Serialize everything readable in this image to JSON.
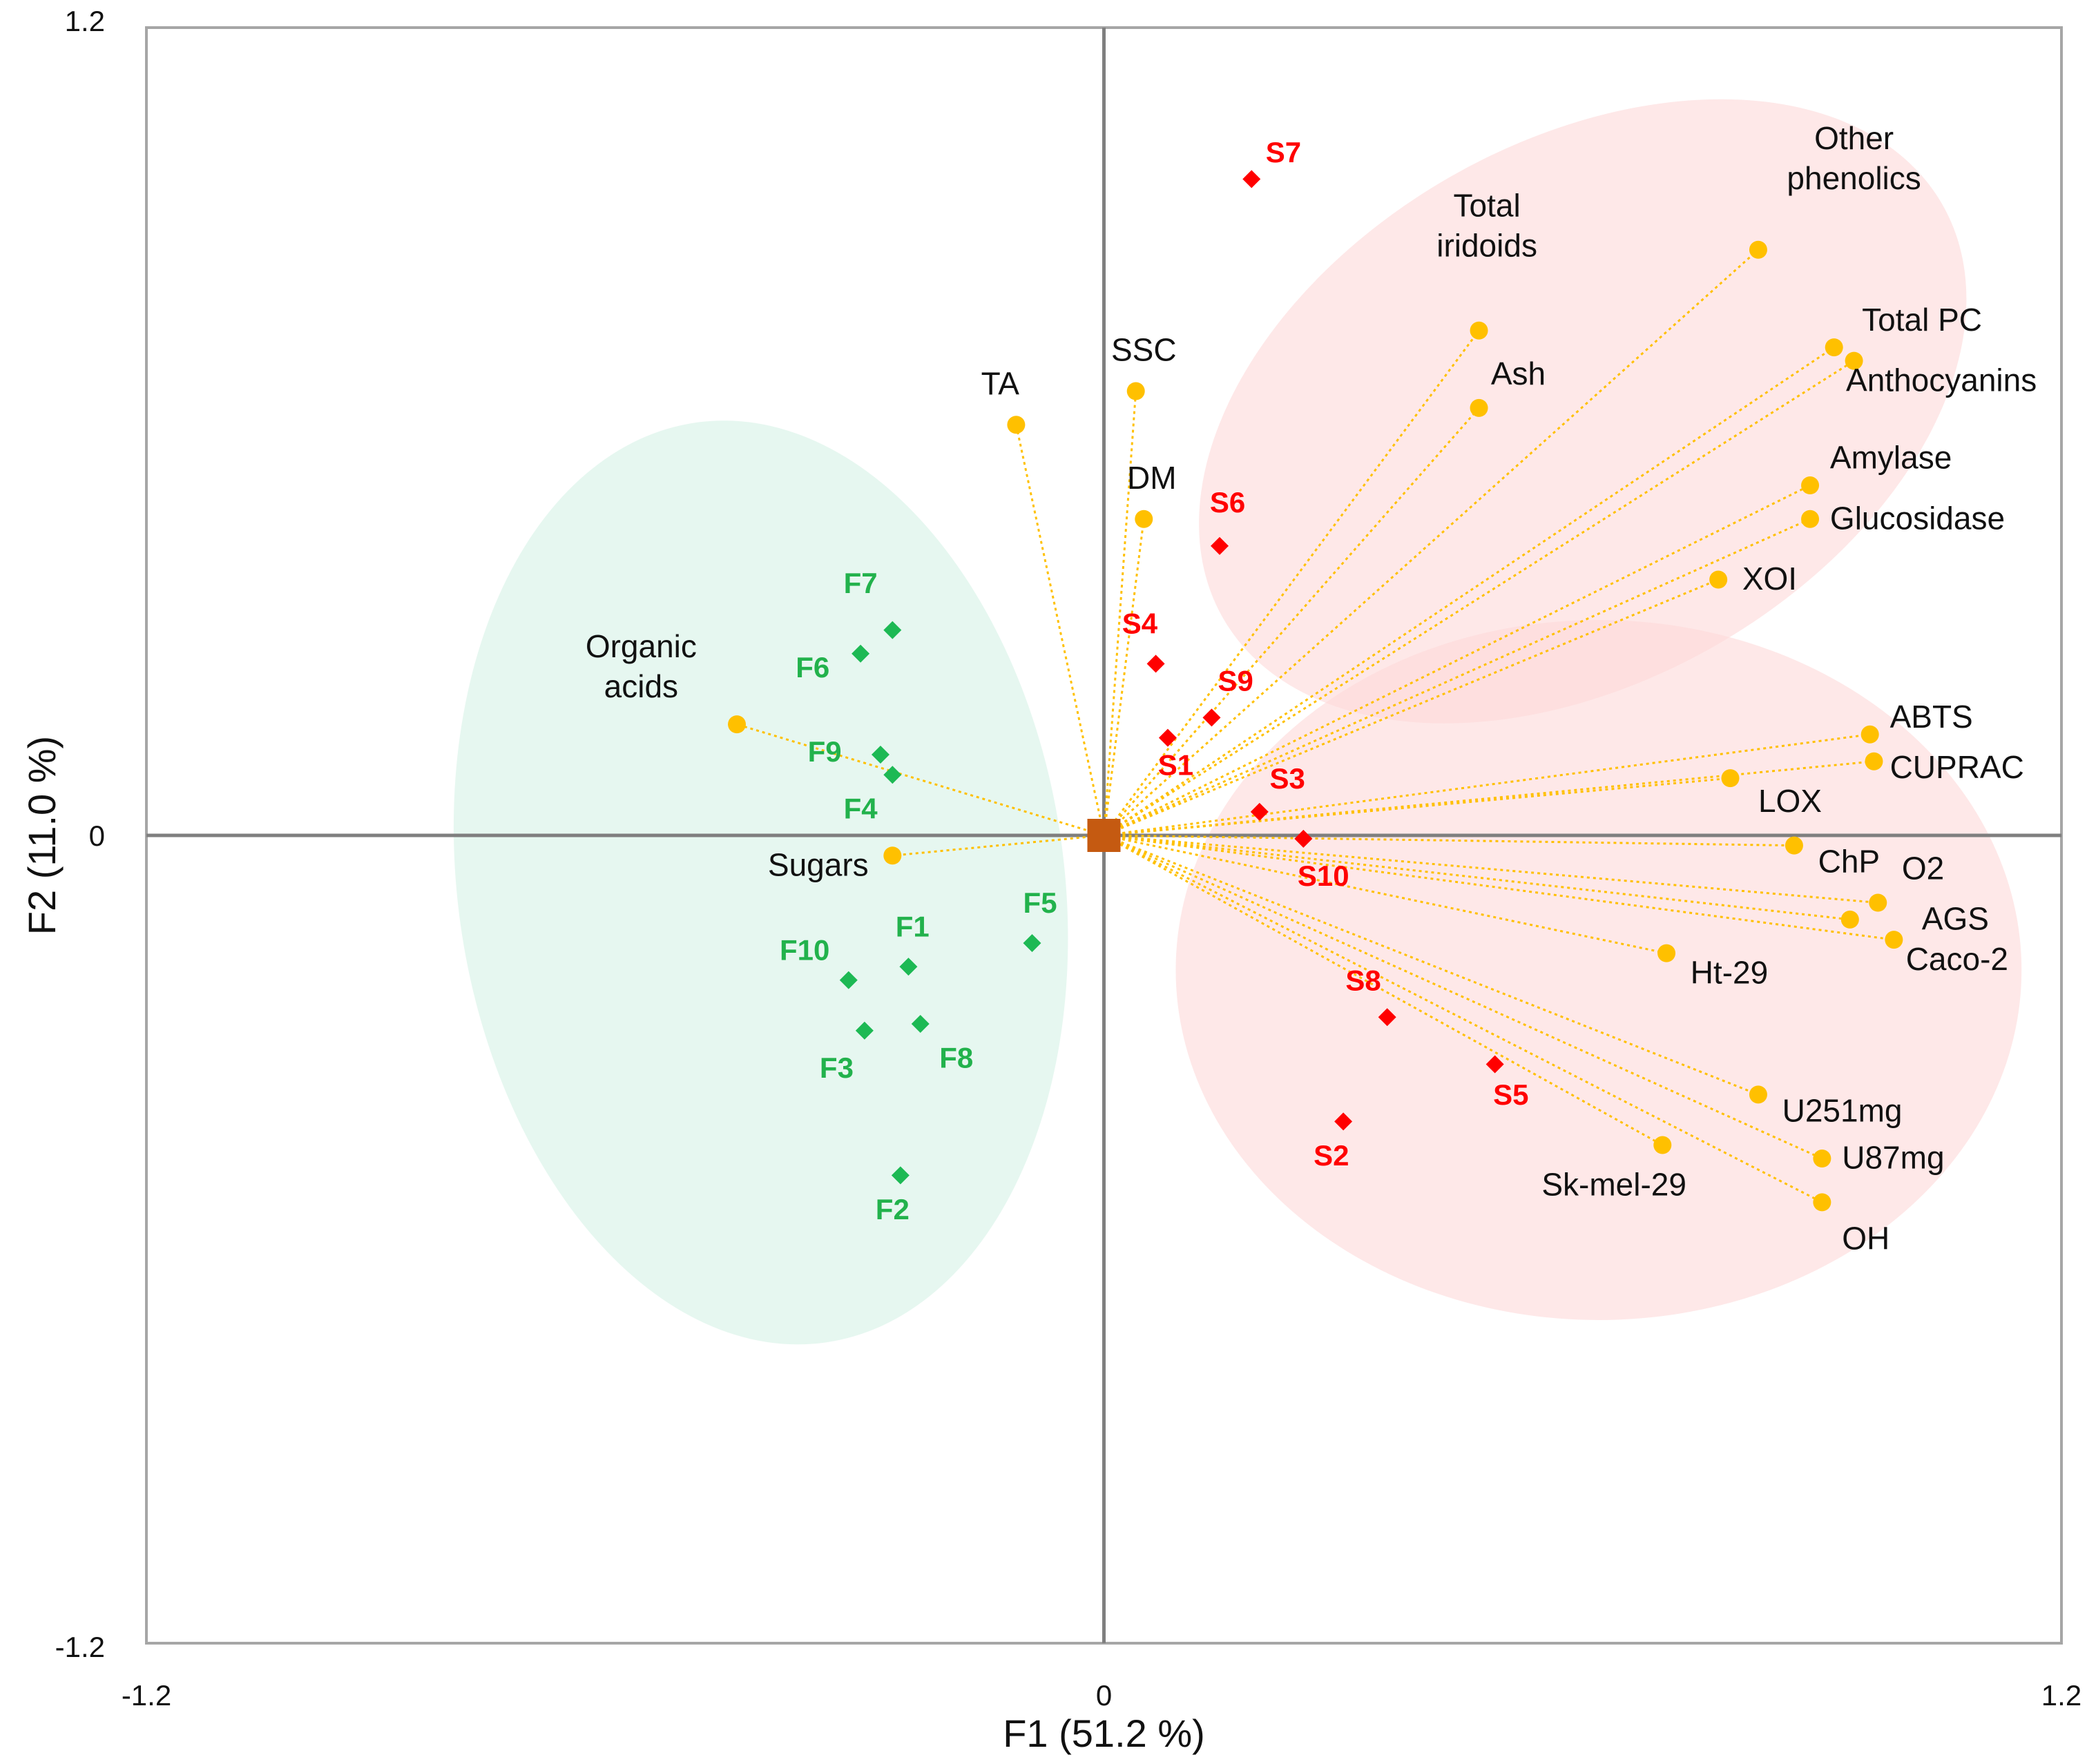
{
  "chart_data": {
    "type": "scatter",
    "subtype": "pca-biplot",
    "title": "",
    "xlabel": "F1 (51.2 %)",
    "ylabel": "F2 (11.0 %)",
    "xlim": [
      -1.2,
      1.2
    ],
    "ylim": [
      -1.2,
      1.2
    ],
    "x_tick_labels": [
      "-1.2",
      "0",
      "1.2"
    ],
    "y_tick_labels": [
      "1.2",
      "0",
      "-1.2"
    ],
    "x_ticks": [
      -1.2,
      0,
      1.2
    ],
    "y_ticks": [
      1.2,
      0,
      -1.2
    ],
    "grid": false,
    "colors": {
      "variables": "#FFC000",
      "loading_lines": "#FFC000",
      "fresh_samples": "#1DB954",
      "fresh_labels": "#22B24C",
      "stored_samples": "#FF0000",
      "stored_labels": "#FF0000",
      "origin_marker": "#C55A11",
      "fresh_ellipse": "#CDEFE1",
      "stored_ellipse": "#FDD9D9",
      "axes": "#7F7F7F",
      "frame": "#A6A6A6"
    },
    "ellipses": [
      {
        "group": "F",
        "cx": -0.43,
        "cy": -0.07,
        "rx": 0.38,
        "ry": 0.69,
        "angle": -8
      },
      {
        "group": "S-upper",
        "cx": 0.6,
        "cy": 0.63,
        "rx": 0.52,
        "ry": 0.4,
        "angle": -30
      },
      {
        "group": "S-lower",
        "cx": 0.62,
        "cy": -0.2,
        "rx": 0.53,
        "ry": 0.52,
        "angle": 0
      }
    ],
    "variables": [
      {
        "name": "TA",
        "lines": [
          "TA"
        ],
        "x": -0.11,
        "y": 0.61,
        "anchor": "middle",
        "dx": -0.02,
        "dy": 0.045
      },
      {
        "name": "SSC",
        "lines": [
          "SSC"
        ],
        "x": 0.04,
        "y": 0.66,
        "anchor": "middle",
        "dx": 0.01,
        "dy": 0.045
      },
      {
        "name": "DM",
        "lines": [
          "DM"
        ],
        "x": 0.05,
        "y": 0.47,
        "anchor": "middle",
        "dx": 0.01,
        "dy": 0.045
      },
      {
        "name": "Total iridoids",
        "lines": [
          "Total",
          "iridoids"
        ],
        "x": 0.47,
        "y": 0.75,
        "anchor": "middle",
        "dx": 0.01,
        "dy": 0.11
      },
      {
        "name": "Ash",
        "lines": [
          "Ash"
        ],
        "x": 0.47,
        "y": 0.635,
        "anchor": "start",
        "dx": 0.015,
        "dy": 0.035
      },
      {
        "name": "Other phenolics",
        "lines": [
          "Other",
          "phenolics"
        ],
        "x": 0.82,
        "y": 0.87,
        "anchor": "middle",
        "dx": 0.12,
        "dy": 0.09
      },
      {
        "name": "Total PC",
        "lines": [
          "Total PC"
        ],
        "x": 0.915,
        "y": 0.725,
        "anchor": "start",
        "dx": 0.035,
        "dy": 0.025
      },
      {
        "name": "Anthocyanins",
        "lines": [
          "Anthocyanins"
        ],
        "x": 0.94,
        "y": 0.705,
        "anchor": "start",
        "dx": -0.01,
        "dy": -0.045
      },
      {
        "name": "Amylase",
        "lines": [
          "Amylase"
        ],
        "x": 0.885,
        "y": 0.52,
        "anchor": "start",
        "dx": 0.025,
        "dy": 0.025
      },
      {
        "name": "Glucosidase",
        "lines": [
          "Glucosidase"
        ],
        "x": 0.885,
        "y": 0.47,
        "anchor": "start",
        "dx": 0.025,
        "dy": -0.015
      },
      {
        "name": "XOI",
        "lines": [
          "XOI"
        ],
        "x": 0.77,
        "y": 0.38,
        "anchor": "start",
        "dx": 0.03,
        "dy": -0.015
      },
      {
        "name": "ABTS",
        "lines": [
          "ABTS"
        ],
        "x": 0.96,
        "y": 0.15,
        "anchor": "start",
        "dx": 0.025,
        "dy": 0.01
      },
      {
        "name": "CUPRAC",
        "lines": [
          "CUPRAC"
        ],
        "x": 0.965,
        "y": 0.11,
        "anchor": "start",
        "dx": 0.02,
        "dy": -0.025
      },
      {
        "name": "LOX",
        "lines": [
          "LOX"
        ],
        "x": 0.785,
        "y": 0.085,
        "anchor": "start",
        "dx": 0.035,
        "dy": -0.05
      },
      {
        "name": "ChP",
        "lines": [
          "ChP"
        ],
        "x": 0.865,
        "y": -0.015,
        "anchor": "start",
        "dx": 0.03,
        "dy": -0.04
      },
      {
        "name": "O2",
        "lines": [
          "O2"
        ],
        "x": 0.97,
        "y": -0.1,
        "anchor": "start",
        "dx": 0.03,
        "dy": 0.035
      },
      {
        "name": "AGS",
        "lines": [
          "AGS"
        ],
        "x": 0.935,
        "y": -0.125,
        "anchor": "start",
        "dx": 0.09,
        "dy": -0.015
      },
      {
        "name": "Caco-2",
        "lines": [
          "Caco-2"
        ],
        "x": 0.99,
        "y": -0.155,
        "anchor": "start",
        "dx": 0.015,
        "dy": -0.045
      },
      {
        "name": "Ht-29",
        "lines": [
          "Ht-29"
        ],
        "x": 0.705,
        "y": -0.175,
        "anchor": "start",
        "dx": 0.03,
        "dy": -0.045
      },
      {
        "name": "U251mg",
        "lines": [
          "U251mg"
        ],
        "x": 0.82,
        "y": -0.385,
        "anchor": "start",
        "dx": 0.03,
        "dy": -0.04
      },
      {
        "name": "U87mg",
        "lines": [
          "U87mg"
        ],
        "x": 0.9,
        "y": -0.48,
        "anchor": "start",
        "dx": 0.025,
        "dy": -0.015
      },
      {
        "name": "OH",
        "lines": [
          "OH"
        ],
        "x": 0.9,
        "y": -0.545,
        "anchor": "start",
        "dx": 0.025,
        "dy": -0.07
      },
      {
        "name": "Sk-mel-29",
        "lines": [
          "Sk-mel-29"
        ],
        "x": 0.7,
        "y": -0.46,
        "anchor": "end",
        "dx": 0.03,
        "dy": -0.075
      },
      {
        "name": "Organic acids",
        "lines": [
          "Organic",
          "acids"
        ],
        "x": -0.46,
        "y": 0.165,
        "anchor": "middle",
        "dx": -0.12,
        "dy": 0.04
      },
      {
        "name": "Sugars",
        "lines": [
          "Sugars"
        ],
        "x": -0.265,
        "y": -0.03,
        "anchor": "end",
        "dx": -0.03,
        "dy": -0.03
      }
    ],
    "fresh_samples": [
      {
        "name": "F1",
        "x": -0.245,
        "y": -0.195,
        "dx": 0.005,
        "dy": 0.045
      },
      {
        "name": "F2",
        "x": -0.255,
        "y": -0.505,
        "dx": -0.01,
        "dy": -0.065
      },
      {
        "name": "F3",
        "x": -0.3,
        "y": -0.29,
        "dx": -0.035,
        "dy": -0.07
      },
      {
        "name": "F4",
        "x": -0.265,
        "y": 0.09,
        "dx": -0.04,
        "dy": -0.065
      },
      {
        "name": "F5",
        "x": -0.09,
        "y": -0.16,
        "dx": 0.01,
        "dy": 0.045
      },
      {
        "name": "F6",
        "x": -0.305,
        "y": 0.27,
        "dx": -0.06,
        "dy": -0.035
      },
      {
        "name": "F7",
        "x": -0.265,
        "y": 0.305,
        "dx": -0.04,
        "dy": 0.055
      },
      {
        "name": "F8",
        "x": -0.23,
        "y": -0.28,
        "dx": 0.045,
        "dy": -0.065
      },
      {
        "name": "F9",
        "x": -0.28,
        "y": 0.12,
        "dx": -0.07,
        "dy": -0.01
      },
      {
        "name": "F10",
        "x": -0.32,
        "y": -0.215,
        "dx": -0.055,
        "dy": 0.03
      }
    ],
    "stored_samples": [
      {
        "name": "S1",
        "x": 0.08,
        "y": 0.145,
        "dx": 0.01,
        "dy": -0.055
      },
      {
        "name": "S2",
        "x": 0.3,
        "y": -0.425,
        "dx": -0.015,
        "dy": -0.065
      },
      {
        "name": "S3",
        "x": 0.195,
        "y": 0.035,
        "dx": 0.035,
        "dy": 0.035
      },
      {
        "name": "S4",
        "x": 0.065,
        "y": 0.255,
        "dx": -0.02,
        "dy": 0.045
      },
      {
        "name": "S5",
        "x": 0.49,
        "y": -0.34,
        "dx": 0.02,
        "dy": -0.06
      },
      {
        "name": "S6",
        "x": 0.145,
        "y": 0.43,
        "dx": 0.01,
        "dy": 0.05
      },
      {
        "name": "S7",
        "x": 0.185,
        "y": 0.975,
        "dx": 0.04,
        "dy": 0.025
      },
      {
        "name": "S8",
        "x": 0.355,
        "y": -0.27,
        "dx": -0.03,
        "dy": 0.04
      },
      {
        "name": "S9",
        "x": 0.135,
        "y": 0.175,
        "dx": 0.03,
        "dy": 0.04
      },
      {
        "name": "S10",
        "x": 0.25,
        "y": -0.005,
        "dx": 0.025,
        "dy": -0.07
      }
    ],
    "origin": {
      "x": 0,
      "y": 0
    }
  }
}
